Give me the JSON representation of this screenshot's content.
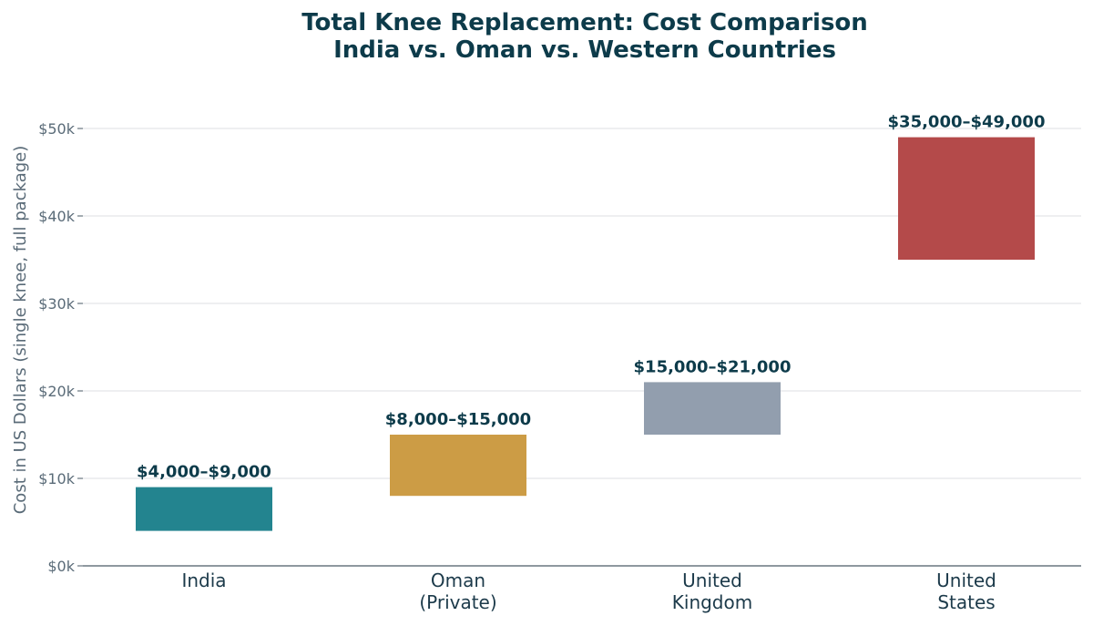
{
  "chart_data": {
    "type": "bar",
    "title_line1": "Total Knee Replacement: Cost Comparison",
    "title_line2": "India vs. Oman vs. Western Countries",
    "ylabel": "Cost in US Dollars (single knee, full package)",
    "xlabel": "",
    "ylim": [
      0,
      50000
    ],
    "yticks": [
      {
        "value": 0,
        "label": "$0k"
      },
      {
        "value": 10000,
        "label": "$10k"
      },
      {
        "value": 20000,
        "label": "$20k"
      },
      {
        "value": 30000,
        "label": "$30k"
      },
      {
        "value": 40000,
        "label": "$40k"
      },
      {
        "value": 50000,
        "label": "$50k"
      }
    ],
    "grid": true,
    "categories": [
      {
        "lines": [
          "India"
        ],
        "low": 4000,
        "high": 9000,
        "label": "$4,000–$9,000",
        "color": "#23848f"
      },
      {
        "lines": [
          "Oman",
          "(Private)"
        ],
        "low": 8000,
        "high": 15000,
        "label": "$8,000–$15,000",
        "color": "#cc9c45"
      },
      {
        "lines": [
          "United",
          "Kingdom"
        ],
        "low": 15000,
        "high": 21000,
        "label": "$15,000–$21,000",
        "color": "#929eae"
      },
      {
        "lines": [
          "United",
          "States"
        ],
        "low": 35000,
        "high": 49000,
        "label": "$35,000–$49,000",
        "color": "#b44a4a"
      }
    ]
  }
}
